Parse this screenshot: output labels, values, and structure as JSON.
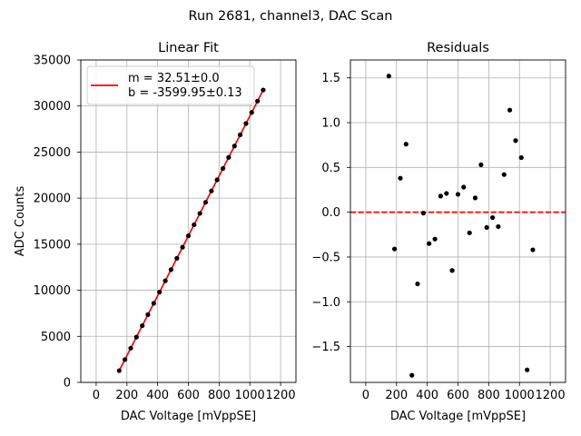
{
  "figure": {
    "suptitle": "Run 2681, channel3, DAC Scan"
  },
  "chart_data": [
    {
      "type": "scatter",
      "title": "Linear Fit",
      "xlabel": "DAC Voltage [mVppSE]",
      "ylabel": "ADC Counts",
      "xlim": [
        -100,
        1300
      ],
      "ylim": [
        0,
        35000
      ],
      "xticks": [
        0,
        200,
        400,
        600,
        800,
        1000,
        1200
      ],
      "xtick_labels": [
        "0",
        "200",
        "400",
        "600",
        "800",
        "1000",
        "1200"
      ],
      "yticks": [
        0,
        5000,
        10000,
        15000,
        20000,
        25000,
        30000,
        35000
      ],
      "ytick_labels": [
        "0",
        "5000",
        "10000",
        "15000",
        "20000",
        "25000",
        "30000",
        "35000"
      ],
      "grid": true,
      "legend_position": "upper-left",
      "fit": {
        "slope": 32.51,
        "intercept": -3599.95,
        "x_range": [
          150,
          1087
        ],
        "color": "#ff0000"
      },
      "legend": [
        {
          "label_line1": "m = 32.51±0.0",
          "label_line2": "b = -3599.95±0.13",
          "color": "#ff0000"
        }
      ],
      "series": [
        {
          "marker_color": "#000000",
          "x": [
            150,
            187,
            225,
            262,
            300,
            337,
            375,
            412,
            450,
            487,
            525,
            562,
            600,
            637,
            675,
            712,
            750,
            787,
            825,
            862,
            900,
            937,
            975,
            1012,
            1050,
            1087
          ],
          "y": [
            1277,
            2480,
            3715,
            4918,
            6154,
            7357,
            8592,
            9795,
            11031,
            12234,
            13468,
            14671,
            15907,
            17110,
            18346,
            19549,
            20784,
            21986,
            23222,
            24425,
            25661,
            26865,
            28101,
            29303,
            30535,
            31739
          ]
        }
      ]
    },
    {
      "type": "scatter",
      "title": "Residuals",
      "xlabel": "DAC Voltage [mVppSE]",
      "ylabel": "",
      "xlim": [
        -100,
        1300
      ],
      "ylim": [
        -1.9,
        1.7
      ],
      "xticks": [
        0,
        200,
        400,
        600,
        800,
        1000,
        1200
      ],
      "xtick_labels": [
        "0",
        "200",
        "400",
        "600",
        "800",
        "1000",
        "1200"
      ],
      "yticks": [
        -1.5,
        -1.0,
        -0.5,
        0.0,
        0.5,
        1.0,
        1.5
      ],
      "ytick_labels": [
        "−1.5",
        "−1.0",
        "−0.5",
        "0.0",
        "0.5",
        "1.0",
        "1.5"
      ],
      "grid": true,
      "zero_line": {
        "y": 0,
        "color": "#ff0000",
        "style": "dashed"
      },
      "series": [
        {
          "marker_color": "#000000",
          "x": [
            150,
            187,
            225,
            262,
            300,
            337,
            375,
            412,
            450,
            487,
            525,
            562,
            600,
            637,
            675,
            712,
            750,
            787,
            825,
            862,
            900,
            937,
            975,
            1012,
            1050,
            1087
          ],
          "y": [
            1.52,
            -0.41,
            0.38,
            0.76,
            -1.82,
            -0.8,
            -0.01,
            -0.35,
            -0.3,
            0.18,
            0.21,
            -0.65,
            0.2,
            0.28,
            -0.23,
            0.16,
            0.53,
            -0.17,
            -0.06,
            -0.16,
            0.42,
            1.14,
            0.8,
            0.61,
            -1.76,
            -0.42
          ]
        }
      ]
    }
  ]
}
